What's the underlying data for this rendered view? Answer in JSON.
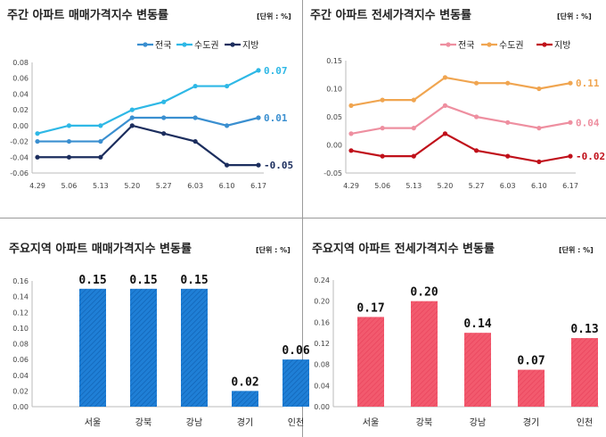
{
  "chart_data": [
    {
      "type": "line",
      "title": "주간 아파트 매매가격지수 변동률",
      "unit": "[단위 : %]",
      "x": [
        "4.29",
        "5.06",
        "5.13",
        "5.20",
        "5.27",
        "6.03",
        "6.10",
        "6.17"
      ],
      "ylim": [
        -0.06,
        0.08
      ],
      "yticks": [
        "0.08",
        "0.06",
        "0.04",
        "0.02",
        "0.00",
        "-0.02",
        "-0.04",
        "-0.06"
      ],
      "legend_position": "top-right",
      "series": [
        {
          "name": "전국",
          "color": "#3a8fd0",
          "values": [
            -0.02,
            -0.02,
            -0.02,
            0.01,
            0.01,
            0.01,
            0.0,
            0.01
          ],
          "end_label": "0.01"
        },
        {
          "name": "수도권",
          "color": "#2eb8e6",
          "values": [
            -0.01,
            0.0,
            0.0,
            0.02,
            0.03,
            0.05,
            0.05,
            0.07
          ],
          "end_label": "0.07"
        },
        {
          "name": "지방",
          "color": "#1c2e5e",
          "values": [
            -0.04,
            -0.04,
            -0.04,
            0.0,
            -0.01,
            -0.02,
            -0.05,
            -0.05
          ],
          "end_label": "-0.05"
        }
      ]
    },
    {
      "type": "line",
      "title": "주간 아파트 전세가격지수 변동률",
      "unit": "[단위 : %]",
      "x": [
        "4.29",
        "5.06",
        "5.13",
        "5.20",
        "5.27",
        "6.03",
        "6.10",
        "6.17"
      ],
      "ylim": [
        -0.05,
        0.15
      ],
      "yticks": [
        "0.15",
        "0.10",
        "0.05",
        "0.00",
        "-0.05"
      ],
      "legend_position": "top-right",
      "series": [
        {
          "name": "전국",
          "color": "#ee8fa0",
          "values": [
            0.02,
            0.03,
            0.03,
            0.07,
            0.05,
            0.04,
            0.03,
            0.04
          ],
          "end_label": "0.04"
        },
        {
          "name": "수도권",
          "color": "#f0a550",
          "values": [
            0.07,
            0.08,
            0.08,
            0.12,
            0.11,
            0.11,
            0.1,
            0.11
          ],
          "end_label": "0.11"
        },
        {
          "name": "지방",
          "color": "#c0101a",
          "values": [
            -0.01,
            -0.02,
            -0.02,
            0.02,
            -0.01,
            -0.02,
            -0.03,
            -0.02
          ],
          "end_label": "-0.02"
        }
      ]
    },
    {
      "type": "bar",
      "title": "주요지역 아파트 매매가격지수 변동률",
      "unit": "[단위 : %]",
      "categories": [
        "서울",
        "강북",
        "강남",
        "경기",
        "인천"
      ],
      "values": [
        0.15,
        0.15,
        0.15,
        0.02,
        0.06
      ],
      "value_labels": [
        "0.15",
        "0.15",
        "0.15",
        "0.02",
        "0.06"
      ],
      "ylim": [
        0,
        0.16
      ],
      "yticks": [
        "0.16",
        "0.14",
        "0.12",
        "0.10",
        "0.08",
        "0.06",
        "0.04",
        "0.02",
        "0.00"
      ],
      "color": "#1f7fd6"
    },
    {
      "type": "bar",
      "title": "주요지역 아파트 전세가격지수 변동률",
      "unit": "[단위 : %]",
      "categories": [
        "서울",
        "강북",
        "강남",
        "경기",
        "인천"
      ],
      "values": [
        0.17,
        0.2,
        0.14,
        0.07,
        0.13
      ],
      "value_labels": [
        "0.17",
        "0.20",
        "0.14",
        "0.07",
        "0.13"
      ],
      "ylim": [
        0,
        0.24
      ],
      "yticks": [
        "0.24",
        "0.20",
        "0.16",
        "0.12",
        "0.08",
        "0.04",
        "0.00"
      ],
      "color": "#f25a6e"
    }
  ]
}
